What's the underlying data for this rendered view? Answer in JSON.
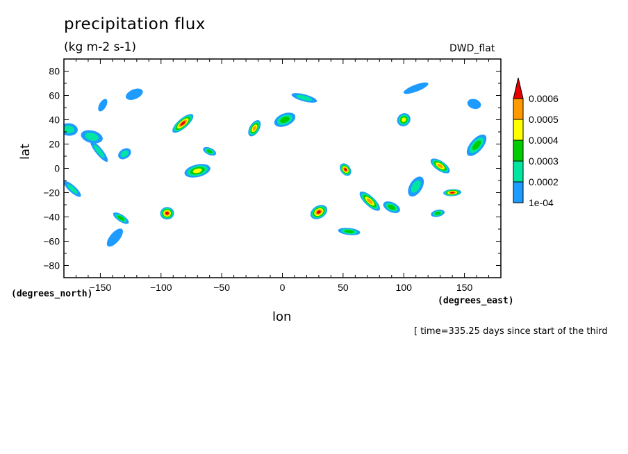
{
  "header": {
    "title": "precipitation flux",
    "units": "(kg m-2 s-1)",
    "dataset": "DWD_flat"
  },
  "axes": {
    "x_label": "lon",
    "y_label": "lat",
    "x_units": "(degrees_east)",
    "y_units": "(degrees_north)"
  },
  "footer": {
    "time": "[ time=335.25 days since start of the third"
  },
  "colors": {
    "level1": "#1e9bff",
    "level2": "#00e6a0",
    "level3": "#00cc00",
    "level4": "#ffff00",
    "level5": "#ff9900",
    "level6": "#e60000"
  },
  "chart_data": {
    "type": "heatmap",
    "title": "precipitation flux",
    "units": "(kg m-2 s-1)",
    "xlabel": "lon",
    "ylabel": "lat",
    "xlim": [
      -180,
      180
    ],
    "ylim": [
      -90,
      90
    ],
    "x_ticks": [
      -150,
      -100,
      -50,
      0,
      50,
      100,
      150
    ],
    "y_ticks": [
      80,
      60,
      40,
      20,
      0,
      -20,
      -40,
      -60,
      -80
    ],
    "colorbar": {
      "levels": [
        "1e-04",
        "0.0002",
        "0.0003",
        "0.0004",
        "0.0005",
        "0.0006"
      ],
      "colors": [
        "#1e9bff",
        "#00e6a0",
        "#00cc00",
        "#ffff00",
        "#ff9900",
        "#e60000"
      ]
    },
    "features": [
      {
        "lon": -148,
        "lat": 52,
        "max": 1
      },
      {
        "lon": -122,
        "lat": 61,
        "max": 1
      },
      {
        "lon": -157,
        "lat": 26,
        "max": 2
      },
      {
        "lon": -151,
        "lat": 14,
        "max": 2
      },
      {
        "lon": -130,
        "lat": 12,
        "max": 2
      },
      {
        "lon": -176,
        "lat": 32,
        "max": 2
      },
      {
        "lon": -173,
        "lat": -17,
        "max": 2
      },
      {
        "lon": -82,
        "lat": 37,
        "max": 6
      },
      {
        "lon": -95,
        "lat": -37,
        "max": 6
      },
      {
        "lon": -133,
        "lat": -41,
        "max": 3
      },
      {
        "lon": -138,
        "lat": -57,
        "max": 1
      },
      {
        "lon": -70,
        "lat": -2,
        "max": 4
      },
      {
        "lon": -60,
        "lat": 14,
        "max": 3
      },
      {
        "lon": -23,
        "lat": 33,
        "max": 5
      },
      {
        "lon": 2,
        "lat": 40,
        "max": 3
      },
      {
        "lon": 18,
        "lat": 58,
        "max": 2
      },
      {
        "lon": 52,
        "lat": -1,
        "max": 6
      },
      {
        "lon": 30,
        "lat": -36,
        "max": 6
      },
      {
        "lon": 55,
        "lat": -52,
        "max": 3
      },
      {
        "lon": 72,
        "lat": -27,
        "max": 5
      },
      {
        "lon": 100,
        "lat": 40,
        "max": 4
      },
      {
        "lon": 140,
        "lat": -20,
        "max": 6
      },
      {
        "lon": 130,
        "lat": 2,
        "max": 5
      },
      {
        "lon": 160,
        "lat": 19,
        "max": 3
      },
      {
        "lon": 128,
        "lat": -37,
        "max": 3
      },
      {
        "lon": 90,
        "lat": -32,
        "max": 3
      },
      {
        "lon": 110,
        "lat": -15,
        "max": 2
      },
      {
        "lon": 110,
        "lat": 66,
        "max": 1
      },
      {
        "lon": 158,
        "lat": 53,
        "max": 1
      }
    ]
  }
}
